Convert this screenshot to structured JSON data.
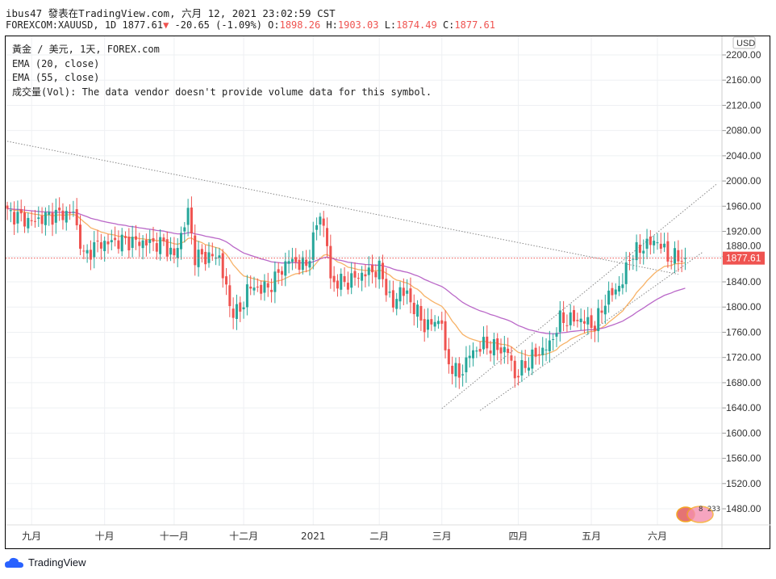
{
  "header": {
    "title": "ibus47 發表在TradingView.com, 六月 12, 2021 23:02:59 CST",
    "symbol": "FOREXCOM:XAUUSD, 1D 1877.61",
    "arrow": "▼",
    "change": "-20.65 (-1.09%)",
    "o_label": "O:",
    "o": "1898.26",
    "h_label": "H:",
    "h": "1903.03",
    "l_label": "L:",
    "l": "1874.49",
    "c_label": "C:",
    "c": "1877.61"
  },
  "legend": [
    "黃金 / 美元, 1天, FOREX.com",
    "EMA (20, close)",
    "EMA (55, close)",
    "成交量(Vol): The data vendor doesn't provide volume data for this symbol."
  ],
  "currency": "USD",
  "last_price_label": "1877.61",
  "badge_text": "8 233",
  "footer": {
    "brand": "TradingView"
  },
  "colors": {
    "up": "#26a69a",
    "down": "#ef5350",
    "ema20": "#f7b267",
    "ema55": "#ba68c8"
  },
  "chart_data": {
    "type": "candlestick",
    "title": "XAUUSD 1D",
    "y_ticks": [
      2200,
      2160,
      2120,
      2080,
      2040,
      2000,
      1960,
      1920,
      1880,
      1840,
      1800,
      1760,
      1720,
      1680,
      1640,
      1600,
      1560,
      1520,
      1480
    ],
    "ylim": [
      1450,
      2230
    ],
    "x_labels": [
      {
        "label": "九月",
        "day": 7
      },
      {
        "label": "十月",
        "day": 28
      },
      {
        "label": "十一月",
        "day": 48
      },
      {
        "label": "十二月",
        "day": 68
      },
      {
        "label": "2021",
        "day": 88
      },
      {
        "label": "二月",
        "day": 107
      },
      {
        "label": "三月",
        "day": 125
      },
      {
        "label": "四月",
        "day": 147
      },
      {
        "label": "五月",
        "day": 168
      },
      {
        "label": "六月",
        "day": 187
      }
    ],
    "close_keypoints": [
      [
        0,
        1950
      ],
      [
        7,
        1935
      ],
      [
        12,
        1945
      ],
      [
        19,
        1950
      ],
      [
        22,
        1880
      ],
      [
        26,
        1900
      ],
      [
        33,
        1905
      ],
      [
        45,
        1900
      ],
      [
        48,
        1880
      ],
      [
        52,
        1950
      ],
      [
        54,
        1880
      ],
      [
        61,
        1880
      ],
      [
        64,
        1800
      ],
      [
        67,
        1790
      ],
      [
        69,
        1830
      ],
      [
        75,
        1830
      ],
      [
        81,
        1875
      ],
      [
        86,
        1865
      ],
      [
        90,
        1950
      ],
      [
        92,
        1900
      ],
      [
        93,
        1840
      ],
      [
        98,
        1840
      ],
      [
        101,
        1850
      ],
      [
        107,
        1860
      ],
      [
        111,
        1800
      ],
      [
        113,
        1830
      ],
      [
        116,
        1810
      ],
      [
        120,
        1770
      ],
      [
        125,
        1780
      ],
      [
        126,
        1720
      ],
      [
        130,
        1690
      ],
      [
        133,
        1725
      ],
      [
        137,
        1740
      ],
      [
        144,
        1730
      ],
      [
        146,
        1690
      ],
      [
        151,
        1720
      ],
      [
        156,
        1740
      ],
      [
        159,
        1780
      ],
      [
        165,
        1780
      ],
      [
        169,
        1770
      ],
      [
        172,
        1810
      ],
      [
        177,
        1840
      ],
      [
        179,
        1880
      ],
      [
        184,
        1900
      ],
      [
        187,
        1905
      ],
      [
        190,
        1880
      ],
      [
        195,
        1877.61
      ]
    ],
    "trendlines": [
      {
        "from": [
          0,
          2063
        ],
        "to": [
          193,
          1852
        ]
      },
      {
        "from": [
          125,
          1639
        ],
        "to": [
          204,
          1995
        ]
      },
      {
        "from": [
          136,
          1636
        ],
        "to": [
          200,
          1887
        ]
      }
    ],
    "last_price": 1877.61
  }
}
